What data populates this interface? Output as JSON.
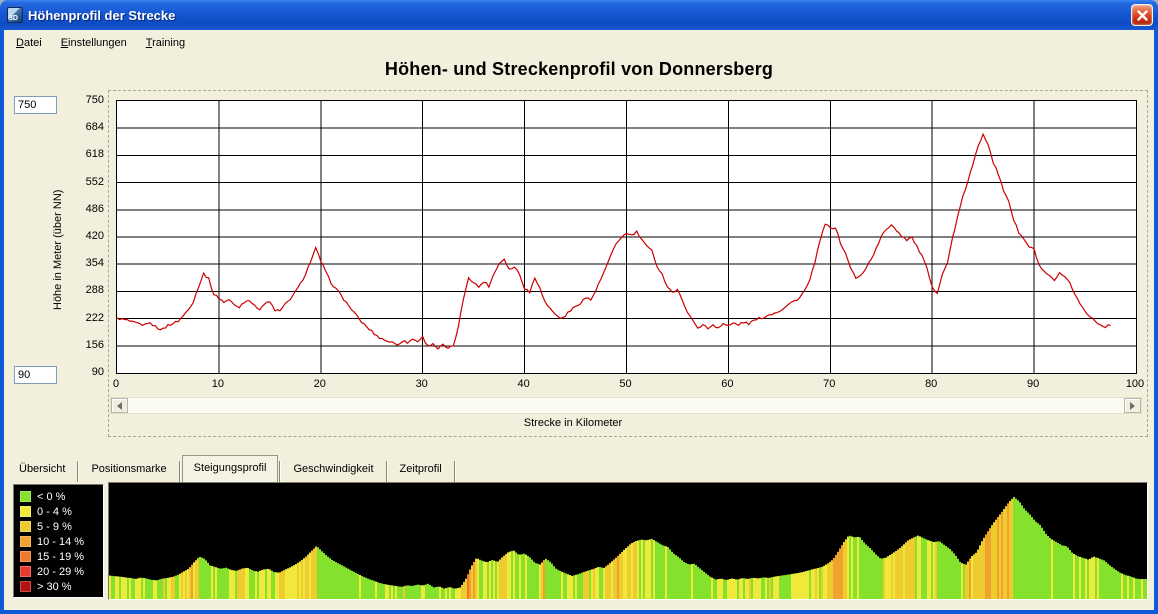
{
  "window": {
    "title": "Höhenprofil der Strecke"
  },
  "menu": {
    "items": [
      "Datei",
      "Einstellungen",
      "Training"
    ]
  },
  "chart": {
    "title": "Höhen- und Streckenprofil von Donnersberg",
    "y_axis_label": "Höhe in Meter (über NN)",
    "x_axis_label": "Strecke in Kilometer",
    "y_max_field": "750",
    "y_min_field": "90"
  },
  "tabs": [
    {
      "label": "Übersicht",
      "active": false
    },
    {
      "label": "Positionsmarke",
      "active": false
    },
    {
      "label": "Steigungsprofil",
      "active": true
    },
    {
      "label": "Geschwindigkeit",
      "active": false
    },
    {
      "label": "Zeitprofil",
      "active": false
    }
  ],
  "gradient_legend": [
    {
      "label": "< 0 %",
      "color": "#84e22c",
      "max_slope_pct": 0
    },
    {
      "label": "0 - 4 %",
      "color": "#efe93b",
      "max_slope_pct": 4.5
    },
    {
      "label": "5 - 9 %",
      "color": "#eecb2f",
      "max_slope_pct": 9.5
    },
    {
      "label": "10 - 14 %",
      "color": "#f0a22e",
      "max_slope_pct": 14.5
    },
    {
      "label": "15 - 19 %",
      "color": "#ee7a2e",
      "max_slope_pct": 19.5
    },
    {
      "label": "20 - 29 %",
      "color": "#e8392e",
      "max_slope_pct": 29.5
    },
    {
      "label": "> 30 %",
      "color": "#b41212",
      "max_slope_pct": 999
    }
  ],
  "chart_data": [
    {
      "id": "elevation_profile",
      "type": "line",
      "title": "Höhen- und Streckenprofil von Donnersberg",
      "xlabel": "Strecke in Kilometer",
      "ylabel": "Höhe in Meter (über NN)",
      "x_ticks": [
        0,
        10,
        20,
        30,
        40,
        50,
        60,
        70,
        80,
        90,
        100
      ],
      "y_ticks": [
        750,
        684,
        618,
        552,
        486,
        420,
        354,
        288,
        222,
        156,
        90
      ],
      "xlim": [
        0,
        100
      ],
      "ylim": [
        90,
        750
      ],
      "grid": true,
      "line_color": "#cc0000",
      "route_length_km": 97.5,
      "series": [
        {
          "name": "Höhenprofil",
          "points": [
            [
              0,
              224
            ],
            [
              0.5,
              220
            ],
            [
              1,
              218
            ],
            [
              1.5,
              213
            ],
            [
              2,
              210
            ],
            [
              2.5,
              204
            ],
            [
              3,
              212
            ],
            [
              3.5,
              207
            ],
            [
              4,
              199
            ],
            [
              4.5,
              196
            ],
            [
              5,
              206
            ],
            [
              5.5,
              210
            ],
            [
              6,
              216
            ],
            [
              6.5,
              228
            ],
            [
              7,
              246
            ],
            [
              7.5,
              263
            ],
            [
              8,
              300
            ],
            [
              8.5,
              331
            ],
            [
              9,
              318
            ],
            [
              9.5,
              281
            ],
            [
              10,
              272
            ],
            [
              10.5,
              262
            ],
            [
              11,
              268
            ],
            [
              11.5,
              255
            ],
            [
              12,
              250
            ],
            [
              12.5,
              263
            ],
            [
              13,
              268
            ],
            [
              13.5,
              252
            ],
            [
              14,
              246
            ],
            [
              14.5,
              258
            ],
            [
              15,
              262
            ],
            [
              15.5,
              243
            ],
            [
              16,
              240
            ],
            [
              16.5,
              256
            ],
            [
              17,
              270
            ],
            [
              17.5,
              286
            ],
            [
              18,
              306
            ],
            [
              18.5,
              331
            ],
            [
              19,
              361
            ],
            [
              19.5,
              392
            ],
            [
              20,
              362
            ],
            [
              20.5,
              334
            ],
            [
              21,
              310
            ],
            [
              21.5,
              294
            ],
            [
              22,
              278
            ],
            [
              22.5,
              261
            ],
            [
              23,
              245
            ],
            [
              23.5,
              229
            ],
            [
              24,
              214
            ],
            [
              24.5,
              202
            ],
            [
              25,
              191
            ],
            [
              25.5,
              180
            ],
            [
              26,
              173
            ],
            [
              26.5,
              168
            ],
            [
              27,
              164
            ],
            [
              27.5,
              159
            ],
            [
              28,
              168
            ],
            [
              28.5,
              164
            ],
            [
              29,
              172
            ],
            [
              29.5,
              167
            ],
            [
              30,
              177
            ],
            [
              30.5,
              155
            ],
            [
              31,
              162
            ],
            [
              31.5,
              149
            ],
            [
              32,
              158
            ],
            [
              32.5,
              148
            ],
            [
              33,
              156
            ],
            [
              33.5,
              201
            ],
            [
              34,
              271
            ],
            [
              34.5,
              323
            ],
            [
              35,
              309
            ],
            [
              35.5,
              299
            ],
            [
              36,
              312
            ],
            [
              36.5,
              301
            ],
            [
              37,
              331
            ],
            [
              37.5,
              356
            ],
            [
              38,
              367
            ],
            [
              38.5,
              341
            ],
            [
              39,
              348
            ],
            [
              39.5,
              330
            ],
            [
              40,
              296
            ],
            [
              40.5,
              286
            ],
            [
              41,
              321
            ],
            [
              41.5,
              299
            ],
            [
              42,
              262
            ],
            [
              42.5,
              246
            ],
            [
              43,
              234
            ],
            [
              43.5,
              221
            ],
            [
              44,
              230
            ],
            [
              44.5,
              241
            ],
            [
              45,
              252
            ],
            [
              45.5,
              261
            ],
            [
              46,
              273
            ],
            [
              46.5,
              267
            ],
            [
              47,
              291
            ],
            [
              47.5,
              318
            ],
            [
              48,
              347
            ],
            [
              48.5,
              376
            ],
            [
              49,
              404
            ],
            [
              49.5,
              420
            ],
            [
              50,
              428
            ],
            [
              50.5,
              424
            ],
            [
              51,
              432
            ],
            [
              51.5,
              414
            ],
            [
              52,
              396
            ],
            [
              52.5,
              386
            ],
            [
              53,
              350
            ],
            [
              53.5,
              329
            ],
            [
              54,
              301
            ],
            [
              54.5,
              286
            ],
            [
              55,
              291
            ],
            [
              55.5,
              264
            ],
            [
              56,
              239
            ],
            [
              56.5,
              216
            ],
            [
              57,
              201
            ],
            [
              57.5,
              206
            ],
            [
              58,
              198
            ],
            [
              58.5,
              207
            ],
            [
              59,
              200
            ],
            [
              59.5,
              209
            ],
            [
              60,
              204
            ],
            [
              60.5,
              211
            ],
            [
              61,
              207
            ],
            [
              61.5,
              213
            ],
            [
              62,
              210
            ],
            [
              62.5,
              217
            ],
            [
              63,
              222
            ],
            [
              63.5,
              226
            ],
            [
              64,
              231
            ],
            [
              64.5,
              236
            ],
            [
              65,
              241
            ],
            [
              65.5,
              249
            ],
            [
              66,
              258
            ],
            [
              66.5,
              265
            ],
            [
              67,
              273
            ],
            [
              67.5,
              291
            ],
            [
              68,
              314
            ],
            [
              68.5,
              361
            ],
            [
              69,
              411
            ],
            [
              69.5,
              452
            ],
            [
              70,
              441
            ],
            [
              70.5,
              444
            ],
            [
              71,
              406
            ],
            [
              71.5,
              379
            ],
            [
              72,
              346
            ],
            [
              72.5,
              319
            ],
            [
              73,
              326
            ],
            [
              73.5,
              346
            ],
            [
              74,
              366
            ],
            [
              74.5,
              391
            ],
            [
              75,
              421
            ],
            [
              75.5,
              438
            ],
            [
              76,
              451
            ],
            [
              76.5,
              437
            ],
            [
              77,
              423
            ],
            [
              77.5,
              414
            ],
            [
              78,
              419
            ],
            [
              78.5,
              396
            ],
            [
              79,
              374
            ],
            [
              79.5,
              341
            ],
            [
              80,
              296
            ],
            [
              80.5,
              286
            ],
            [
              81,
              331
            ],
            [
              81.5,
              356
            ],
            [
              82,
              419
            ],
            [
              82.5,
              469
            ],
            [
              83,
              516
            ],
            [
              83.5,
              556
            ],
            [
              84,
              596
            ],
            [
              84.5,
              639
            ],
            [
              85,
              671
            ],
            [
              85.5,
              646
            ],
            [
              86,
              601
            ],
            [
              86.5,
              571
            ],
            [
              87,
              533
            ],
            [
              87.5,
              509
            ],
            [
              88,
              461
            ],
            [
              88.5,
              431
            ],
            [
              89,
              414
            ],
            [
              89.5,
              396
            ],
            [
              90,
              389
            ],
            [
              90.5,
              351
            ],
            [
              91,
              334
            ],
            [
              91.5,
              324
            ],
            [
              92,
              314
            ],
            [
              92.5,
              331
            ],
            [
              93,
              321
            ],
            [
              93.5,
              309
            ],
            [
              94,
              282
            ],
            [
              94.5,
              259
            ],
            [
              95,
              239
            ],
            [
              95.5,
              226
            ],
            [
              96,
              218
            ],
            [
              96.5,
              206
            ],
            [
              97,
              203
            ],
            [
              97.5,
              205
            ]
          ]
        }
      ]
    },
    {
      "id": "slope_profile",
      "type": "area",
      "background": "#000000",
      "x_range_km": [
        0,
        97.5
      ],
      "y_range_m": [
        90,
        750
      ],
      "series": "elevation_profile",
      "color_by": "slope_percent",
      "legend_position": "left"
    }
  ]
}
